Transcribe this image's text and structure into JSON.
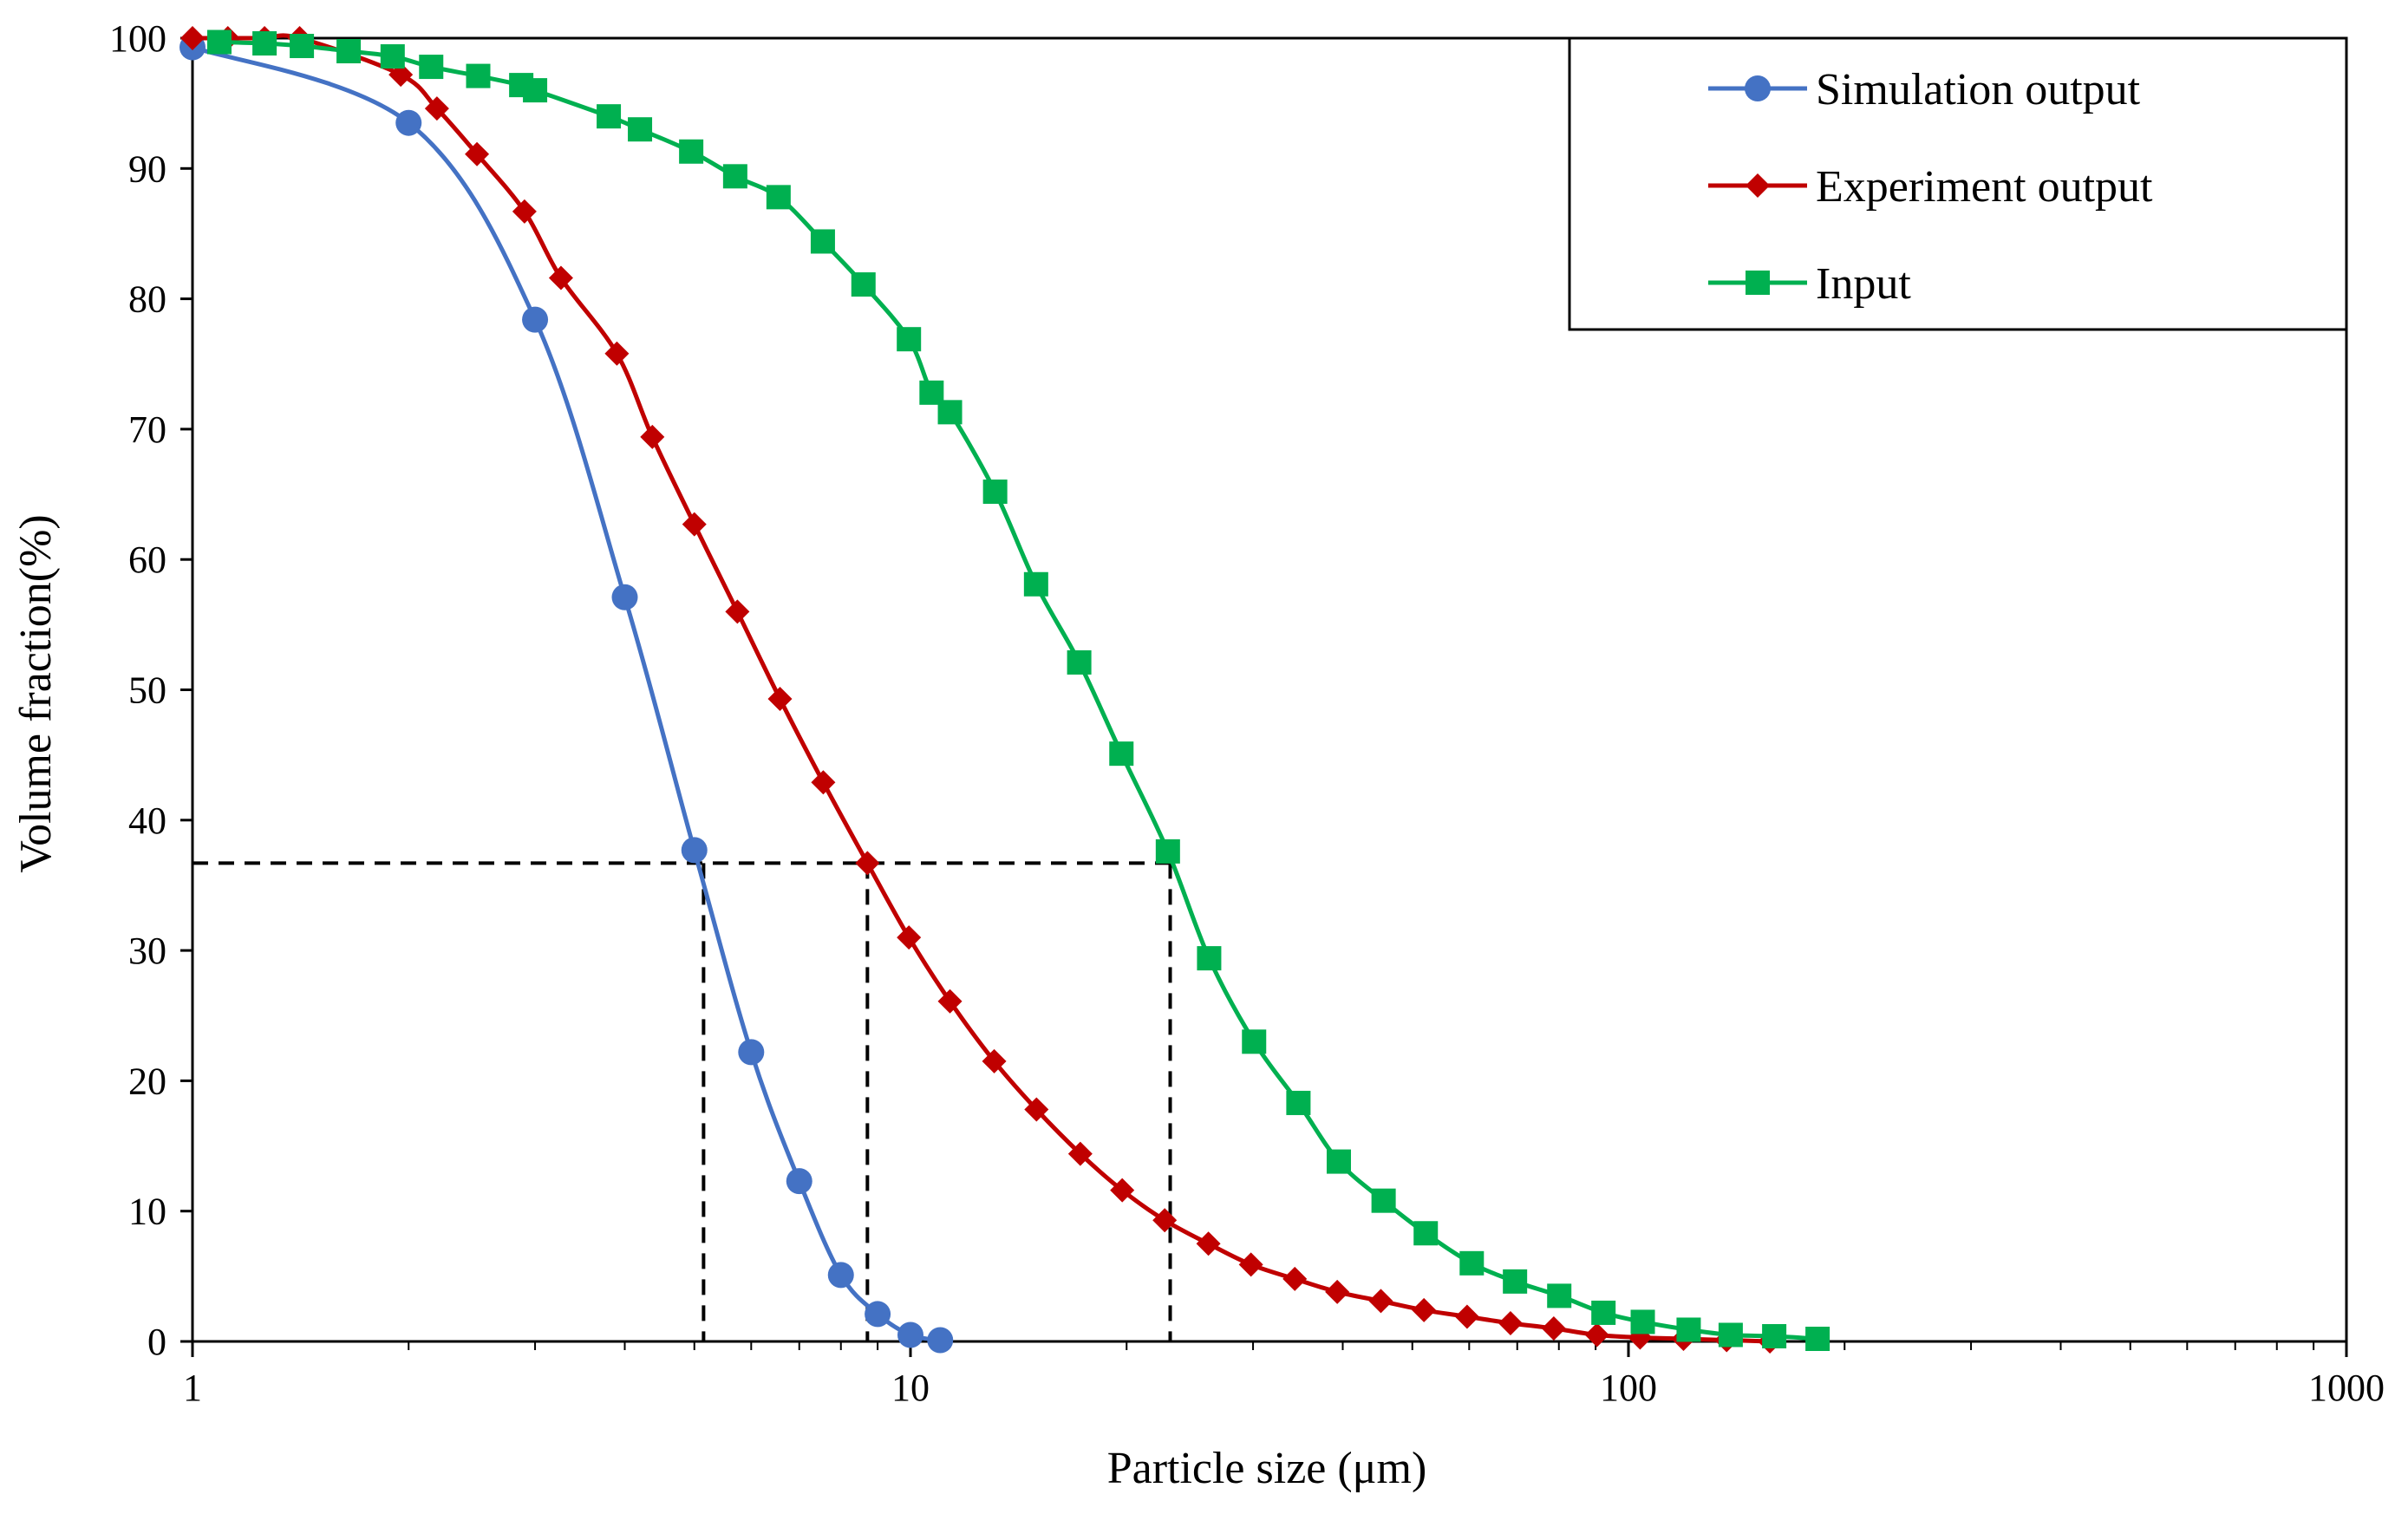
{
  "chart_data": {
    "type": "line",
    "title": "",
    "xlabel": "Particle size (μm)",
    "ylabel": "Volume fraction(%)",
    "xscale": "log",
    "xlim": [
      1,
      1000
    ],
    "ylim": [
      0,
      100
    ],
    "x_ticks": [
      "1",
      "10",
      "100",
      "1000"
    ],
    "y_ticks": [
      "0",
      "10",
      "20",
      "30",
      "40",
      "50",
      "60",
      "70",
      "80",
      "90",
      "100"
    ],
    "grid": false,
    "legend_position": "top-right",
    "series": [
      {
        "name": "Simulation output",
        "color": "#4472C4",
        "marker": "circle",
        "x": [
          1.0,
          2.0,
          3.0,
          4.0,
          5.0,
          6.0,
          7.0,
          8.0,
          9.0,
          10.0,
          11.0
        ],
        "y": [
          99.3,
          93.5,
          78.4,
          57.1,
          37.7,
          22.2,
          12.3,
          5.1,
          2.1,
          0.5,
          0.1
        ]
      },
      {
        "name": "Experiment output",
        "color": "#C00000",
        "marker": "diamond",
        "x": [
          1.0,
          1.12,
          1.26,
          1.41,
          1.95,
          2.19,
          2.49,
          2.9,
          3.26,
          3.9,
          4.37,
          5.0,
          5.74,
          6.58,
          7.56,
          8.71,
          9.95,
          11.35,
          13.08,
          14.98,
          17.24,
          19.72,
          22.6,
          26.0,
          29.8,
          34.3,
          39.3,
          45.2,
          51.9,
          59.6,
          68.5,
          78.7,
          90.4,
          103.8,
          119.3,
          137.0,
          157.4
        ],
        "y": [
          100,
          100,
          100,
          100,
          97.2,
          94.6,
          91.1,
          86.7,
          81.6,
          75.8,
          69.4,
          62.7,
          56.0,
          49.3,
          42.9,
          36.7,
          31.0,
          26.1,
          21.5,
          17.8,
          14.4,
          11.6,
          9.3,
          7.5,
          5.9,
          4.8,
          3.8,
          3.1,
          2.4,
          1.9,
          1.4,
          1.0,
          0.5,
          0.3,
          0.2,
          0.1,
          0.0
        ]
      },
      {
        "name": "Input",
        "color": "#00B050",
        "marker": "square",
        "x": [
          1.09,
          1.26,
          1.42,
          1.65,
          1.9,
          2.15,
          2.5,
          2.87,
          3.0,
          3.8,
          4.2,
          4.95,
          5.7,
          6.55,
          7.55,
          8.6,
          9.95,
          10.7,
          11.35,
          13.12,
          14.96,
          17.18,
          19.67,
          22.83,
          26.06,
          30.1,
          34.7,
          39.5,
          45.6,
          52.2,
          60.5,
          69.5,
          80.1,
          92.3,
          104.7,
          121.3,
          138.8,
          159.6,
          183.4
        ],
        "y": [
          99.7,
          99.6,
          99.4,
          99.0,
          98.6,
          97.8,
          97.1,
          96.4,
          96.0,
          94.0,
          93.0,
          91.3,
          89.4,
          87.8,
          84.4,
          81.1,
          76.9,
          72.8,
          71.3,
          65.2,
          58.1,
          52.1,
          45.1,
          37.6,
          29.4,
          23.0,
          18.3,
          13.8,
          10.8,
          8.3,
          6.0,
          4.6,
          3.5,
          2.2,
          1.5,
          0.9,
          0.5,
          0.4,
          0.2
        ]
      }
    ],
    "reference_lines": {
      "y": 36.7,
      "x": [
        5.15,
        8.71,
        23.0
      ]
    }
  }
}
